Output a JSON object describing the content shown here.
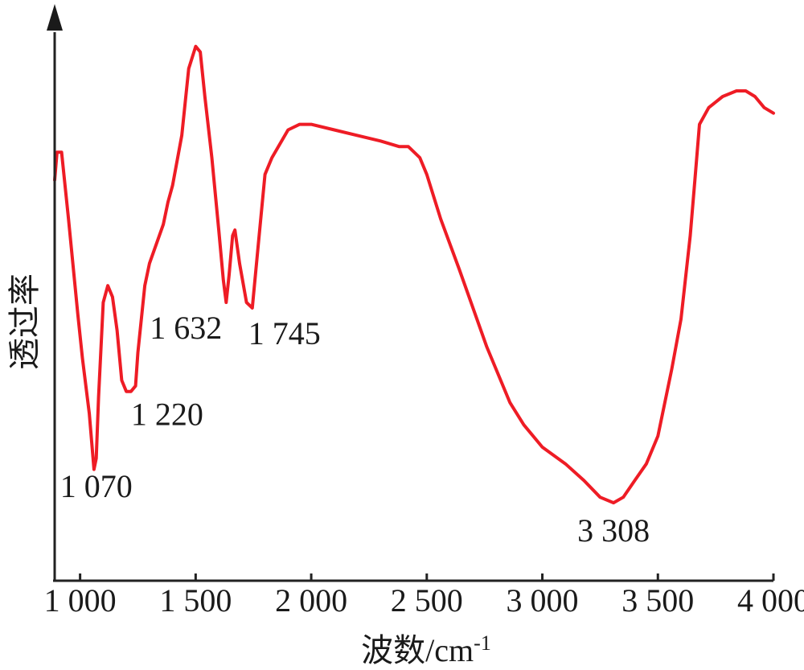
{
  "chart_data": {
    "type": "line",
    "xlabel": "波数/cm",
    "xlabel_sup": "-1",
    "ylabel": "透过率",
    "xlim": [
      890,
      4000
    ],
    "ylim": [
      0,
      100
    ],
    "y_ticks_shown": false,
    "x_ticks": [
      {
        "value": 1000,
        "label": "1 000"
      },
      {
        "value": 1500,
        "label": "1 500"
      },
      {
        "value": 2000,
        "label": "2 000"
      },
      {
        "value": 2500,
        "label": "2 500"
      },
      {
        "value": 3000,
        "label": "3 000"
      },
      {
        "value": 3500,
        "label": "3 500"
      },
      {
        "value": 4000,
        "label": "4 000"
      }
    ],
    "series": [
      {
        "color": "#ee1c25",
        "points": [
          [
            890,
            72
          ],
          [
            900,
            77
          ],
          [
            920,
            77
          ],
          [
            950,
            65
          ],
          [
            990,
            48
          ],
          [
            1010,
            40
          ],
          [
            1040,
            30
          ],
          [
            1060,
            20
          ],
          [
            1070,
            22
          ],
          [
            1080,
            33
          ],
          [
            1100,
            50
          ],
          [
            1120,
            53
          ],
          [
            1140,
            51
          ],
          [
            1160,
            45
          ],
          [
            1180,
            36
          ],
          [
            1200,
            34
          ],
          [
            1220,
            34
          ],
          [
            1240,
            35
          ],
          [
            1250,
            41
          ],
          [
            1280,
            53
          ],
          [
            1300,
            57
          ],
          [
            1360,
            64
          ],
          [
            1380,
            68
          ],
          [
            1400,
            71
          ],
          [
            1440,
            80
          ],
          [
            1470,
            92
          ],
          [
            1500,
            96
          ],
          [
            1520,
            95
          ],
          [
            1540,
            87
          ],
          [
            1570,
            76
          ],
          [
            1600,
            63
          ],
          [
            1620,
            54
          ],
          [
            1632,
            50
          ],
          [
            1645,
            55
          ],
          [
            1660,
            62
          ],
          [
            1670,
            63
          ],
          [
            1690,
            57
          ],
          [
            1720,
            50
          ],
          [
            1745,
            49
          ],
          [
            1770,
            60
          ],
          [
            1800,
            73
          ],
          [
            1830,
            76
          ],
          [
            1900,
            81
          ],
          [
            1950,
            82
          ],
          [
            2000,
            82
          ],
          [
            2100,
            81
          ],
          [
            2200,
            80
          ],
          [
            2300,
            79
          ],
          [
            2380,
            78
          ],
          [
            2420,
            78
          ],
          [
            2470,
            76
          ],
          [
            2500,
            73
          ],
          [
            2560,
            65
          ],
          [
            2640,
            56
          ],
          [
            2700,
            49
          ],
          [
            2760,
            42
          ],
          [
            2800,
            38
          ],
          [
            2860,
            32
          ],
          [
            2920,
            28
          ],
          [
            3000,
            24
          ],
          [
            3100,
            21
          ],
          [
            3180,
            18
          ],
          [
            3250,
            15
          ],
          [
            3308,
            14
          ],
          [
            3350,
            15
          ],
          [
            3400,
            18
          ],
          [
            3450,
            21
          ],
          [
            3500,
            26
          ],
          [
            3560,
            38
          ],
          [
            3600,
            47
          ],
          [
            3640,
            62
          ],
          [
            3660,
            72
          ],
          [
            3680,
            82
          ],
          [
            3720,
            85
          ],
          [
            3780,
            87
          ],
          [
            3840,
            88
          ],
          [
            3880,
            88
          ],
          [
            3920,
            87
          ],
          [
            3960,
            85
          ],
          [
            4000,
            84
          ]
        ]
      }
    ],
    "annotations": [
      {
        "label": "1 070",
        "x": 1070
      },
      {
        "label": "1 220",
        "x": 1220
      },
      {
        "label": "1 632",
        "x": 1632
      },
      {
        "label": "1 745",
        "x": 1745
      },
      {
        "label": "3 308",
        "x": 3308
      }
    ]
  }
}
